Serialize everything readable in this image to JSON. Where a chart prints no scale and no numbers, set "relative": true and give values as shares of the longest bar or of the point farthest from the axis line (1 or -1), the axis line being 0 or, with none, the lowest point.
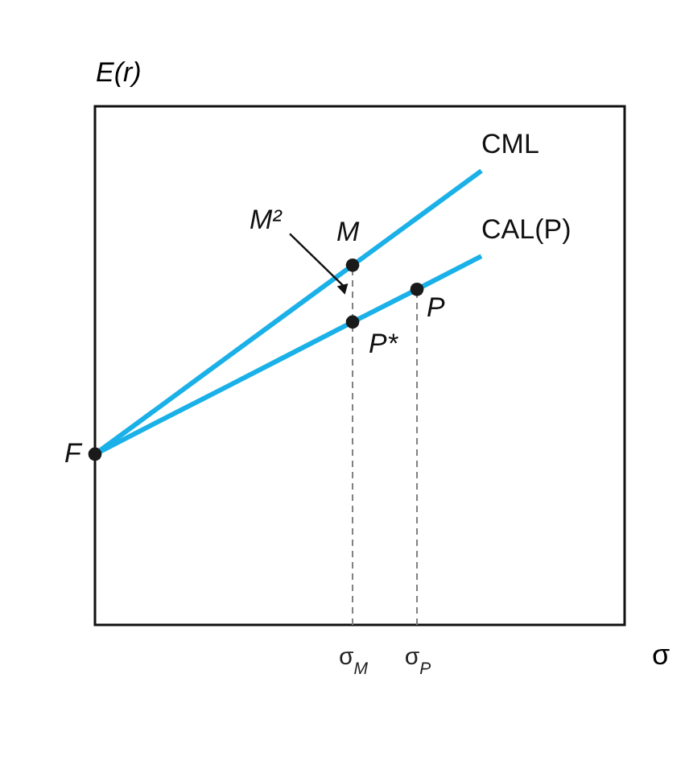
{
  "chart_data": {
    "type": "line",
    "relative": true,
    "ylabel": "E(r)",
    "xlabel": "σ",
    "categories": [
      null,
      null,
      null,
      null,
      "σ$_{M}$",
      "σ$_{P}$",
      null,
      null,
      null
    ],
    "series": [
      {
        "name": "CML",
        "color": "#1ab0e8",
        "values": [
          0.376,
          0.48,
          0.584,
          0.688,
          0.792,
          0.896,
          1,
          null,
          null
        ]
      },
      {
        "name": "CAL(P)",
        "color": "#1ab0e8",
        "values": [
          0.376,
          0.449,
          0.521,
          0.594,
          0.667,
          0.739,
          0.812,
          null,
          null
        ]
      },
      {
        "type": "scatter",
        "color": "#1a1a1a",
        "marker": "circle",
        "values": [
          0.376,
          null,
          null,
          null,
          0.792,
          null,
          null,
          null,
          null
        ]
      },
      {
        "type": "scatter",
        "color": "#1a1a1a",
        "marker": "circle",
        "values": [
          null,
          null,
          null,
          null,
          0.667,
          0.739,
          null,
          null,
          null
        ]
      }
    ],
    "annotations": [
      "F",
      {
        "text": "M",
        "x": "σ$_{M}$",
        "y": 0.792
      },
      {
        "text": "P*",
        "x": "σ$_{M}$",
        "y": 0.667
      },
      {
        "text": "P",
        "x": "σ$_{P}$",
        "y": 0.739
      },
      {
        "text": "M²",
        "x": "σ$_{M}$",
        "y": 0.73
      }
    ],
    "ref_lines": [
      {
        "axis": "x",
        "value": "σ$_{M}$",
        "color": "#808080",
        "line_style": "dashed"
      },
      {
        "axis": "x",
        "value": "σ$_{P}$",
        "color": "#808080",
        "line_style": "dashed"
      }
    ],
    "line_style": "solid"
  }
}
